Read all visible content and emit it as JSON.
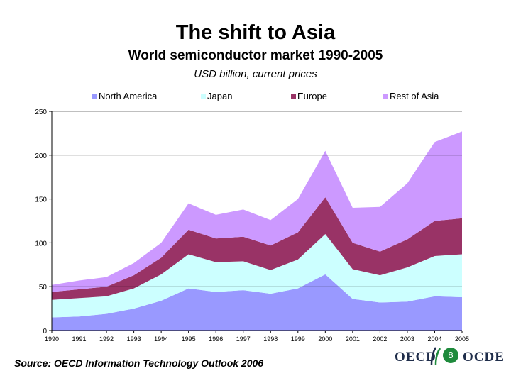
{
  "slide": {
    "title": "The shift to Asia",
    "subtitle": "World semiconductor market 1990-2005",
    "units": "USD billion, current prices",
    "source": "Source: OECD Information Technology Outlook 2006",
    "page_number": "8",
    "logo_left": "OECD",
    "logo_right": "OCDE"
  },
  "chart_data": {
    "type": "area",
    "stacked": true,
    "title": "World semiconductor market 1990-2005",
    "subtitle": "USD billion, current prices",
    "xlabel": "",
    "ylabel": "",
    "ylim": [
      0,
      250
    ],
    "yticks": [
      0,
      50,
      100,
      150,
      200,
      250
    ],
    "grid": "horizontal",
    "legend_position": "top",
    "categories": [
      "1990",
      "1991",
      "1992",
      "1993",
      "1994",
      "1995",
      "1996",
      "1997",
      "1998",
      "1999",
      "2000",
      "2001",
      "2002",
      "2003",
      "2004",
      "2005"
    ],
    "series": [
      {
        "name": "North America",
        "color": "#9999ff",
        "values": [
          15,
          16,
          19,
          25,
          34,
          48,
          44,
          46,
          42,
          48,
          64,
          36,
          32,
          33,
          39,
          38
        ]
      },
      {
        "name": "Japan",
        "color": "#ccffff",
        "values": [
          20,
          21,
          20,
          23,
          30,
          39,
          34,
          33,
          27,
          33,
          46,
          34,
          31,
          39,
          46,
          49
        ]
      },
      {
        "name": "Europe",
        "color": "#993366",
        "values": [
          9,
          10,
          11,
          15,
          19,
          28,
          27,
          28,
          28,
          31,
          42,
          30,
          27,
          32,
          40,
          41
        ]
      },
      {
        "name": "Rest of Asia",
        "color": "#cc99ff",
        "values": [
          8,
          10,
          11,
          14,
          17,
          30,
          27,
          31,
          29,
          38,
          53,
          40,
          51,
          64,
          90,
          99
        ]
      }
    ]
  }
}
